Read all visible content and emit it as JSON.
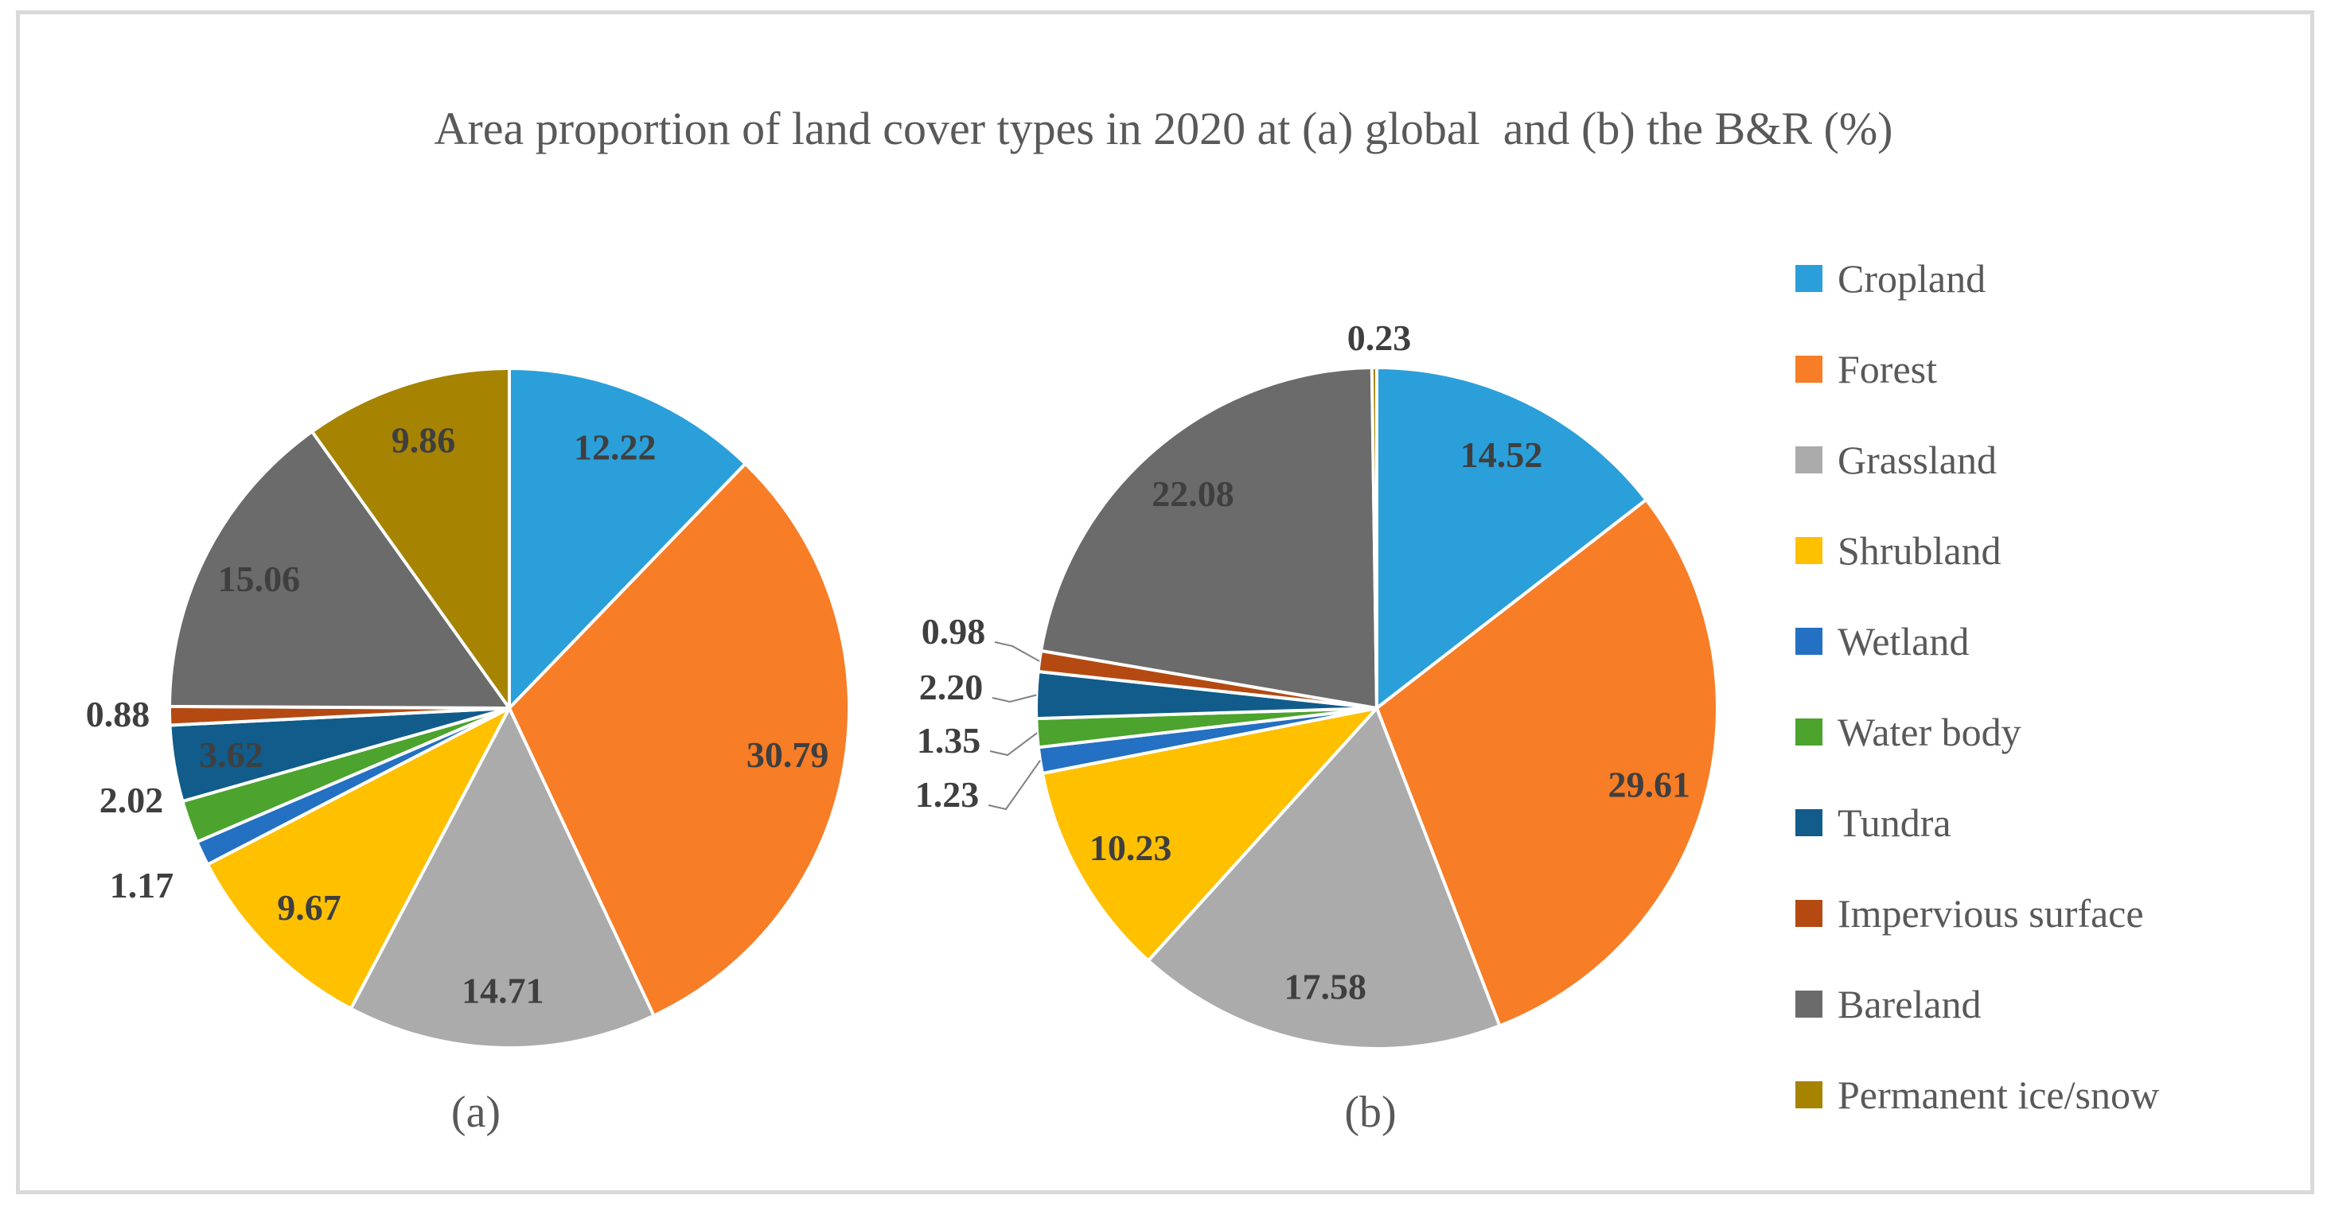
{
  "figure": {
    "title": "Area proportion of land cover types in 2020 at (a) global  and (b) the B&R (%)",
    "captions": {
      "a": "(a)",
      "b": "(b)"
    }
  },
  "legend": {
    "position": "right",
    "items": [
      {
        "label": "Cropland",
        "color": "#2B9FD9"
      },
      {
        "label": "Forest",
        "color": "#F77D26"
      },
      {
        "label": "Grassland",
        "color": "#ABABAB"
      },
      {
        "label": "Shrubland",
        "color": "#FFC000"
      },
      {
        "label": "Wetland",
        "color": "#2470C2"
      },
      {
        "label": "Water body",
        "color": "#4CA32D"
      },
      {
        "label": "Tundra",
        "color": "#115C8A"
      },
      {
        "label": "Impervious surface",
        "color": "#B44A12"
      },
      {
        "label": "Bareland",
        "color": "#6B6B6B"
      },
      {
        "label": "Permanent ice/snow",
        "color": "#A68300"
      }
    ]
  },
  "chart_data": [
    {
      "type": "pie",
      "caption": "(a)",
      "scope": "global",
      "unit": "%",
      "start_angle_deg": 0,
      "direction": "clockwise",
      "categories": [
        "Cropland",
        "Forest",
        "Grassland",
        "Shrubland",
        "Wetland",
        "Water body",
        "Tundra",
        "Impervious surface",
        "Bareland",
        "Permanent ice/snow"
      ],
      "values": [
        12.22,
        30.79,
        14.71,
        9.67,
        1.17,
        2.02,
        3.62,
        0.88,
        15.06,
        9.86
      ],
      "labels": [
        "12.22",
        "30.79",
        "14.71",
        "9.67",
        "1.17",
        "2.02",
        "3.62",
        "0.88",
        "15.06",
        "9.86"
      ]
    },
    {
      "type": "pie",
      "caption": "(b)",
      "scope": "the B&R",
      "unit": "%",
      "start_angle_deg": 0,
      "direction": "clockwise",
      "categories": [
        "Cropland",
        "Forest",
        "Grassland",
        "Shrubland",
        "Wetland",
        "Water body",
        "Tundra",
        "Impervious surface",
        "Bareland",
        "Permanent ice/snow"
      ],
      "values": [
        14.52,
        29.61,
        17.58,
        10.23,
        1.23,
        1.35,
        2.2,
        0.98,
        22.08,
        0.23
      ],
      "labels": [
        "14.52",
        "29.61",
        "17.58",
        "10.23",
        "1.23",
        "1.35",
        "2.20",
        "0.98",
        "22.08",
        "0.23"
      ]
    }
  ]
}
